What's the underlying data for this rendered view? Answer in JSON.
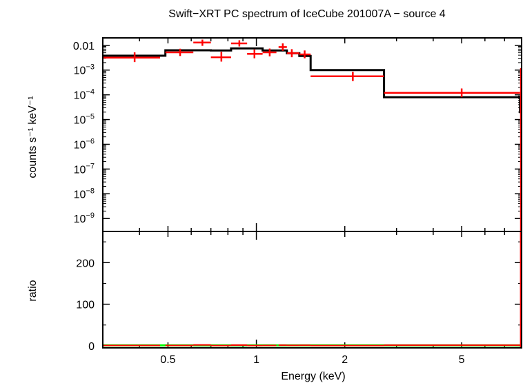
{
  "chart_data": [
    {
      "type": "line",
      "panel": "spectrum",
      "title": "Swift−XRT PC spectrum of IceCube 201007A − source 4",
      "xlabel": "",
      "ylabel": "counts s⁻¹ keV⁻¹",
      "x_scale": "log",
      "y_scale": "log",
      "xlim": [
        0.3,
        8.0
      ],
      "ylim": [
        3e-10,
        0.02
      ],
      "x_ticks": [
        0.5,
        1,
        2,
        5
      ],
      "y_ticks": [
        {
          "value": 0.01,
          "label": "0.01"
        },
        {
          "value": 0.001,
          "base": "10",
          "exp": "−3"
        },
        {
          "value": 0.0001,
          "base": "10",
          "exp": "−4"
        },
        {
          "value": 1e-05,
          "base": "10",
          "exp": "−5"
        },
        {
          "value": 1e-06,
          "base": "10",
          "exp": "−6"
        },
        {
          "value": 1e-07,
          "base": "10",
          "exp": "−7"
        },
        {
          "value": 1e-08,
          "base": "10",
          "exp": "−8"
        },
        {
          "value": 1e-09,
          "base": "10",
          "exp": "−9"
        }
      ],
      "series": [
        {
          "kind": "data",
          "color": "#ff0000",
          "points": [
            {
              "x": 0.385,
              "xlo": 0.3,
              "xhi": 0.47,
              "y": 0.0032,
              "ylo": 0.0021,
              "yhi": 0.0052
            },
            {
              "x": 0.55,
              "xlo": 0.49,
              "xhi": 0.61,
              "y": 0.0052,
              "ylo": 0.0037,
              "yhi": 0.0073
            },
            {
              "x": 0.655,
              "xlo": 0.61,
              "xhi": 0.7,
              "y": 0.013,
              "ylo": 0.0095,
              "yhi": 0.017
            },
            {
              "x": 0.76,
              "xlo": 0.7,
              "xhi": 0.82,
              "y": 0.0033,
              "ylo": 0.0022,
              "yhi": 0.0055
            },
            {
              "x": 0.875,
              "xlo": 0.82,
              "xhi": 0.93,
              "y": 0.012,
              "ylo": 0.009,
              "yhi": 0.016
            },
            {
              "x": 0.985,
              "xlo": 0.93,
              "xhi": 1.05,
              "y": 0.0045,
              "ylo": 0.003,
              "yhi": 0.0068
            },
            {
              "x": 1.11,
              "xlo": 1.05,
              "xhi": 1.17,
              "y": 0.0052,
              "ylo": 0.0036,
              "yhi": 0.0074
            },
            {
              "x": 1.23,
              "xlo": 1.19,
              "xhi": 1.27,
              "y": 0.0085,
              "ylo": 0.006,
              "yhi": 0.012
            },
            {
              "x": 1.32,
              "xlo": 1.27,
              "xhi": 1.4,
              "y": 0.0048,
              "ylo": 0.0033,
              "yhi": 0.007
            },
            {
              "x": 1.46,
              "xlo": 1.4,
              "xhi": 1.53,
              "y": 0.0043,
              "ylo": 0.003,
              "yhi": 0.0062
            },
            {
              "x": 2.13,
              "xlo": 1.53,
              "xhi": 2.72,
              "y": 0.00056,
              "ylo": 0.00036,
              "yhi": 0.00085
            },
            {
              "x": 5.0,
              "xlo": 2.72,
              "xhi": 7.9,
              "y": 0.00012,
              "ylo": 8e-05,
              "yhi": 0.00018
            }
          ]
        },
        {
          "kind": "model",
          "color": "#000000",
          "steps": [
            {
              "xlo": 0.3,
              "xhi": 0.49,
              "y": 0.0038
            },
            {
              "xlo": 0.49,
              "xhi": 0.7,
              "y": 0.0063
            },
            {
              "xlo": 0.7,
              "xhi": 0.82,
              "y": 0.0062
            },
            {
              "xlo": 0.82,
              "xhi": 1.05,
              "y": 0.0075
            },
            {
              "xlo": 1.05,
              "xhi": 1.27,
              "y": 0.0062
            },
            {
              "xlo": 1.27,
              "xhi": 1.4,
              "y": 0.0048
            },
            {
              "xlo": 1.4,
              "xhi": 1.53,
              "y": 0.0037
            },
            {
              "xlo": 1.53,
              "xhi": 2.72,
              "y": 0.001
            },
            {
              "xlo": 2.72,
              "xhi": 7.9,
              "y": 8e-05
            },
            {
              "xlo": 7.9,
              "xhi": 8.0,
              "y": 2e-05
            }
          ]
        }
      ]
    },
    {
      "type": "line",
      "panel": "ratio",
      "xlabel": "Energy (keV)",
      "ylabel": "ratio",
      "x_scale": "log",
      "y_scale": "linear",
      "xlim": [
        0.3,
        8.0
      ],
      "ylim": [
        -5,
        275
      ],
      "x_ticks": [
        0.5,
        1,
        2,
        5
      ],
      "x_tick_labels": [
        "0.5",
        "1",
        "2",
        "5"
      ],
      "y_ticks": [
        0,
        100,
        200
      ],
      "y_tick_labels": [
        "0",
        "100",
        "200"
      ],
      "reference_line": {
        "y": 1,
        "color": "#00ff00"
      },
      "series": [
        {
          "kind": "data",
          "color": "#ff0000",
          "points": [
            {
              "x": 0.385,
              "xlo": 0.3,
              "xhi": 0.47,
              "y": 0.85
            },
            {
              "x": 0.55,
              "xlo": 0.49,
              "xhi": 0.61,
              "y": 0.8
            },
            {
              "x": 0.655,
              "xlo": 0.61,
              "xhi": 0.7,
              "y": 2.1
            },
            {
              "x": 0.76,
              "xlo": 0.7,
              "xhi": 0.82,
              "y": 0.55
            },
            {
              "x": 0.875,
              "xlo": 0.82,
              "xhi": 0.93,
              "y": 1.6
            },
            {
              "x": 0.985,
              "xlo": 0.93,
              "xhi": 1.05,
              "y": 0.6
            },
            {
              "x": 1.11,
              "xlo": 1.05,
              "xhi": 1.17,
              "y": 0.85
            },
            {
              "x": 1.23,
              "xlo": 1.19,
              "xhi": 1.27,
              "y": 1.4
            },
            {
              "x": 1.32,
              "xlo": 1.27,
              "xhi": 1.4,
              "y": 1.0
            },
            {
              "x": 1.46,
              "xlo": 1.4,
              "xhi": 1.53,
              "y": 1.15
            },
            {
              "x": 2.13,
              "xlo": 1.53,
              "xhi": 2.72,
              "y": 0.56
            },
            {
              "x": 5.0,
              "xlo": 2.72,
              "xhi": 7.9,
              "y": 1.5
            },
            {
              "x": 7.95,
              "xlo": 7.92,
              "xhi": 7.98,
              "y": 270,
              "ylo": -5,
              "yhi": 275
            }
          ]
        }
      ]
    }
  ]
}
